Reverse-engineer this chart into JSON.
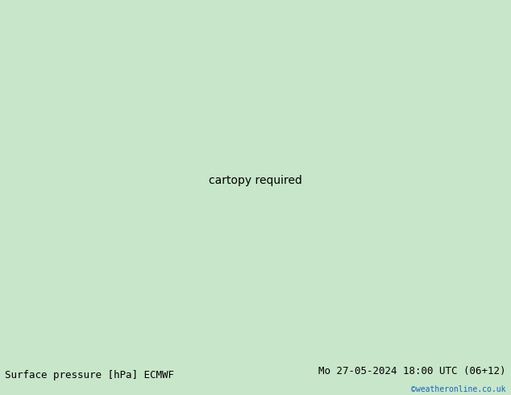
{
  "title_left": "Surface pressure [hPa] ECMWF",
  "title_right": "Mo 27-05-2024 18:00 UTC (06+12)",
  "credit": "©weatheronline.co.uk",
  "bg_color": "#c8e6c9",
  "sea_color": "#d8d8d8",
  "border_color": "#888888",
  "red_color": "#cc0000",
  "black_color": "#000000",
  "blue_color": "#1e6eb5",
  "fig_width": 6.34,
  "fig_height": 4.9,
  "dpi": 100,
  "title_fontsize": 9,
  "credit_color": "#1565c0",
  "extent": [
    -10,
    42,
    28,
    52
  ],
  "contour_lw": 1.2,
  "label_fontsize": 6
}
